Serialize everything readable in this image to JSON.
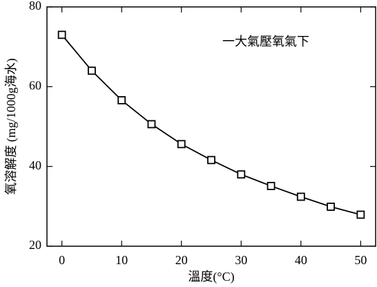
{
  "chart_data": {
    "type": "line",
    "annotation": "一大氣壓氧氣下",
    "x_label": "溫度(°C)",
    "y_label": "氧溶解度 (mg/1000g海水)",
    "x": [
      0,
      5,
      10,
      15,
      20,
      25,
      30,
      35,
      40,
      45,
      50
    ],
    "values": [
      73,
      64,
      56.6,
      50.6,
      45.6,
      41.6,
      38.0,
      35.1,
      32.4,
      29.9,
      27.9
    ],
    "color": "#000000",
    "marker": "square",
    "xlim": [
      -2.5,
      52.5
    ],
    "xticks": [
      0,
      10,
      20,
      30,
      40,
      50
    ],
    "ylim": [
      20,
      80
    ],
    "yticks": [
      20,
      40,
      60,
      80
    ]
  }
}
